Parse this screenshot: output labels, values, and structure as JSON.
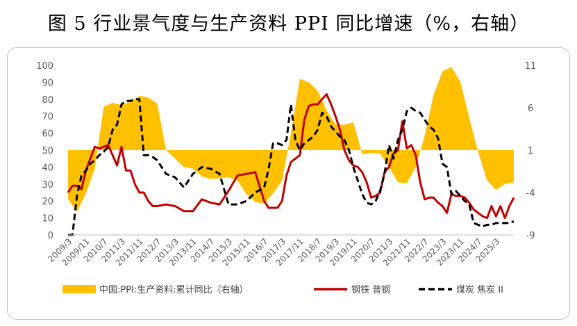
{
  "chart_data": {
    "type": "line",
    "title": "图 5  行业景气度与生产资料 PPI 同比增速（%，右轴）",
    "left_axis": {
      "min": 0,
      "max": 100,
      "ticks": [
        "0",
        "10",
        "20",
        "30",
        "40",
        "50",
        "60",
        "70",
        "80",
        "90",
        "100"
      ]
    },
    "right_axis": {
      "min": -9,
      "max": 11,
      "baseline": 1,
      "ticks": [
        "-9",
        "-4",
        "1",
        "6",
        "11"
      ]
    },
    "x_tick_labels": [
      "2009/3",
      "2009/11",
      "2010/7",
      "2011/3",
      "2011/11",
      "2012/7",
      "2013/3",
      "2013/11",
      "2014/7",
      "2015/3",
      "2015/11",
      "2016/7",
      "2017/3",
      "2017/11",
      "2018/7",
      "2019/3",
      "2019/11",
      "2020/7",
      "2021/3",
      "2021/11",
      "2022/7",
      "2023/3",
      "2023/11",
      "2024/7",
      "2025/3"
    ],
    "series": [
      {
        "name": "中国:PPI:生产资料:累计同比（右轴）",
        "axis": "right",
        "type": "area",
        "color": "#FFC000",
        "x": [
          0.0,
          0.5,
          1.0,
          1.5,
          2.0,
          2.5,
          3.0,
          3.5,
          4.0,
          4.5,
          5.0,
          5.5,
          6.0,
          6.5,
          7.0,
          7.5,
          8.0,
          8.5,
          9.0,
          9.5,
          10.0,
          10.5,
          11.0,
          11.5,
          12.0,
          12.5,
          13.0,
          13.5,
          14.0,
          14.5,
          15.0,
          15.5,
          16.0,
          16.5,
          17.0,
          17.5,
          18.0,
          18.5,
          19.0,
          19.5,
          20.0,
          20.5,
          21.0,
          21.5,
          22.0,
          22.5,
          23.0,
          23.5,
          24.0,
          24.5,
          25.0
        ],
        "values": [
          -4.8,
          -6.3,
          -4.1,
          -1.2,
          6.1,
          6.6,
          6.3,
          6.7,
          7.4,
          7.2,
          6.5,
          1.0,
          0.0,
          -1.0,
          -1.2,
          -2.1,
          -2.4,
          -2.3,
          -2.2,
          -2.6,
          -4.2,
          -5.1,
          -5.3,
          -4.1,
          -2.6,
          3.0,
          9.4,
          9.0,
          8.0,
          5.7,
          4.0,
          4.0,
          4.3,
          0.5,
          0.7,
          0.6,
          -1.0,
          -2.8,
          -2.9,
          -1.0,
          2.7,
          7.5,
          10.3,
          10.8,
          9.1,
          4.8,
          0.8,
          -2.6,
          -3.7,
          -3.0,
          -2.8
        ]
      },
      {
        "name": "钢铁 普钢",
        "axis": "left",
        "type": "line",
        "color": "#C00000",
        "x": [
          0.0,
          0.25,
          0.5,
          0.75,
          1.0,
          1.25,
          1.5,
          1.75,
          2.0,
          2.25,
          2.5,
          2.75,
          3.0,
          3.25,
          3.5,
          3.75,
          4.0,
          4.25,
          4.5,
          4.75,
          5.0,
          5.5,
          6.0,
          6.5,
          7.0,
          7.5,
          8.0,
          8.5,
          9.0,
          9.5,
          10.0,
          10.5,
          11.0,
          11.25,
          11.5,
          11.75,
          12.0,
          12.25,
          12.5,
          12.75,
          13.0,
          13.25,
          13.5,
          13.75,
          14.0,
          14.25,
          14.5,
          14.75,
          15.0,
          15.25,
          15.5,
          15.75,
          16.0,
          16.25,
          16.5,
          16.75,
          17.0,
          17.25,
          17.5,
          17.75,
          18.0,
          18.25,
          18.5,
          18.75,
          19.0,
          19.25,
          19.5,
          19.75,
          20.0,
          20.25,
          20.5,
          20.75,
          21.0,
          21.25,
          21.5,
          21.75,
          22.0,
          22.25,
          22.5,
          22.75,
          23.0,
          23.25,
          23.5,
          23.75,
          24.0,
          24.25,
          24.5,
          24.75,
          25.0
        ],
        "values": [
          25,
          29,
          29,
          27,
          38,
          45,
          52,
          51,
          52,
          53,
          47,
          41,
          52,
          38,
          38,
          30,
          25,
          25,
          20,
          17,
          17,
          18,
          17,
          14,
          14,
          21,
          19,
          18,
          26,
          35,
          36,
          37,
          20,
          16,
          16,
          16,
          20,
          35,
          43,
          45,
          47,
          68,
          76,
          77,
          77,
          80,
          83,
          77,
          70,
          62,
          50,
          44,
          41,
          40,
          37,
          31,
          22,
          23,
          25,
          37,
          40,
          48,
          50,
          67,
          51,
          53,
          47,
          31,
          21,
          22,
          22,
          19,
          17,
          13,
          24,
          23,
          23,
          22,
          19,
          15,
          13,
          11,
          10,
          17,
          11,
          17,
          10,
          17,
          22
        ]
      },
      {
        "name": "煤炭 焦炭 II",
        "axis": "left",
        "type": "dashed",
        "color": "#000000",
        "x": [
          0.0,
          0.25,
          0.5,
          0.75,
          1.0,
          1.25,
          1.5,
          1.75,
          2.0,
          2.25,
          2.5,
          2.75,
          3.0,
          3.25,
          3.5,
          3.75,
          4.0,
          4.25,
          4.5,
          4.75,
          5.0,
          5.5,
          6.0,
          6.5,
          7.0,
          7.5,
          8.0,
          8.5,
          9.0,
          9.5,
          10.0,
          10.5,
          11.0,
          11.25,
          11.5,
          11.75,
          12.0,
          12.25,
          12.5,
          12.75,
          13.0,
          13.25,
          13.5,
          13.75,
          14.0,
          14.25,
          14.5,
          14.75,
          15.0,
          15.25,
          15.5,
          15.75,
          16.0,
          16.25,
          16.5,
          16.75,
          17.0,
          17.25,
          17.5,
          17.75,
          18.0,
          18.25,
          18.5,
          18.75,
          19.0,
          19.25,
          19.5,
          19.75,
          20.0,
          20.25,
          20.5,
          20.75,
          21.0,
          21.25,
          21.5,
          21.75,
          22.0,
          22.25,
          22.5,
          22.75,
          23.0,
          23.25,
          23.5,
          23.75,
          24.0,
          24.25,
          24.5,
          24.75,
          25.0
        ],
        "values": [
          0,
          0,
          23,
          35,
          38,
          42,
          44,
          47,
          49,
          52,
          62,
          65,
          77,
          79,
          79,
          80,
          80,
          47,
          47,
          46,
          44,
          36,
          34,
          28,
          36,
          40,
          39,
          36,
          18,
          18,
          20,
          25,
          28,
          39,
          54,
          54,
          53,
          56,
          77,
          56,
          50,
          54,
          56,
          58,
          62,
          72,
          70,
          64,
          61,
          58,
          56,
          50,
          40,
          32,
          24,
          19,
          18,
          20,
          26,
          36,
          53,
          45,
          56,
          62,
          73,
          75,
          73,
          72,
          68,
          64,
          62,
          57,
          42,
          40,
          24,
          26,
          23,
          20,
          18,
          7,
          6,
          5,
          6,
          6,
          7,
          7,
          7,
          7,
          8
        ]
      }
    ]
  },
  "legend": {
    "area_label": "中国:PPI:生产资料:累计同比（右轴）",
    "red_label": "钢铁 普钢",
    "black_label": "煤炭 焦炭 II"
  }
}
